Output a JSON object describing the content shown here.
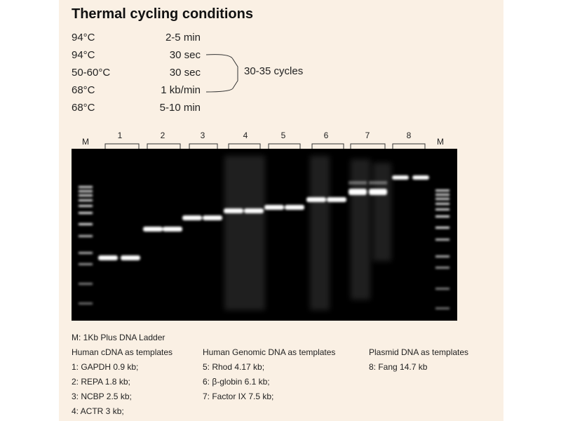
{
  "title": "Thermal cycling conditions",
  "conditions": [
    {
      "temp": "94°C",
      "duration": "2-5 min"
    },
    {
      "temp": "94°C",
      "duration": "30 sec"
    },
    {
      "temp": "50-60°C",
      "duration": "30 sec"
    },
    {
      "temp": "68°C",
      "duration": "1 kb/min"
    },
    {
      "temp": "68°C",
      "duration": "5-10 min"
    }
  ],
  "cycles_label": "30-35 cycles",
  "gel": {
    "marker_label": "M",
    "lane_labels": [
      "1",
      "2",
      "3",
      "4",
      "5",
      "6",
      "7",
      "8"
    ]
  },
  "legend": {
    "ladder": "M: 1Kb Plus DNA Ladder",
    "groups": [
      {
        "heading": "Human cDNA as templates",
        "items": [
          "1: GAPDH 0.9 kb;",
          "2: REPA 1.8 kb;",
          "3: NCBP 2.5 kb;",
          "4: ACTR 3 kb;"
        ]
      },
      {
        "heading": "Human Genomic DNA as templates",
        "items": [
          "5: Rhod 4.17 kb;",
          "6: β-globin 6.1 kb;",
          "7: Factor IX 7.5 kb;"
        ]
      },
      {
        "heading": "Plasmid DNA as templates",
        "items": [
          "8: Fang 14.7 kb"
        ]
      }
    ]
  },
  "colors": {
    "panel_bg": "#faf0e4",
    "gel_bg": "#000000",
    "band": "#ffffff"
  }
}
